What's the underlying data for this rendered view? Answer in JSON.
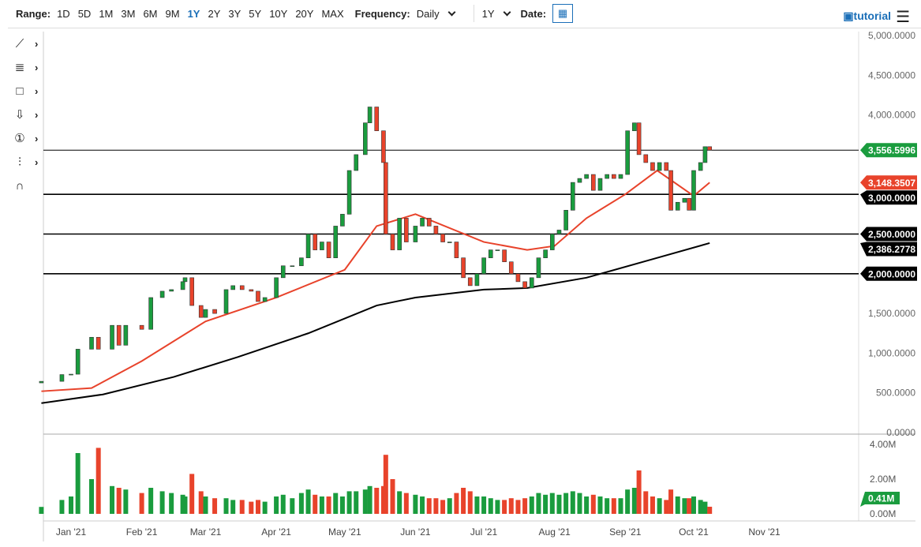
{
  "toolbar": {
    "range_label": "Range:",
    "ranges": [
      "1D",
      "5D",
      "1M",
      "3M",
      "6M",
      "9M",
      "1Y",
      "2Y",
      "3Y",
      "5Y",
      "10Y",
      "20Y",
      "MAX"
    ],
    "active_range": "1Y",
    "frequency_label": "Frequency:",
    "frequency": "Daily",
    "period": "1Y",
    "date_label": "Date:",
    "tutorial": "tutorial"
  },
  "sidebar_tools": [
    "line-tool-icon",
    "fib-tool-icon",
    "rectangle-tool-icon",
    "arrow-tool-icon",
    "number-marker-icon",
    "measure-tool-icon",
    "magnet-icon"
  ],
  "colors": {
    "up": "#1a9c3e",
    "down": "#e8432b",
    "ma50": "#e8432b",
    "ma200": "#000000"
  },
  "chart_data": {
    "type": "candlestick",
    "ylim": [
      0,
      5000
    ],
    "y_ticks": [
      "5,000.0000",
      "4,500.0000",
      "4,000.0000",
      "1,500.0000",
      "1,000.0000",
      "500.0000",
      "0.0000"
    ],
    "x_ticks": [
      [
        "2021-01-01",
        "Jan '21"
      ],
      [
        "2021-02-01",
        "Feb '21"
      ],
      [
        "2021-03-01",
        "Mar '21"
      ],
      [
        "2021-04-01",
        "Apr '21"
      ],
      [
        "2021-05-01",
        "May '21"
      ],
      [
        "2021-06-01",
        "Jun '21"
      ],
      [
        "2021-07-01",
        "Jul '21"
      ],
      [
        "2021-08-01",
        "Aug '21"
      ],
      [
        "2021-09-01",
        "Sep '21"
      ],
      [
        "2021-10-01",
        "Oct '21"
      ],
      [
        "2021-11-01",
        "Nov '21"
      ]
    ],
    "horizontal_lines": [
      {
        "value": 3556.5996,
        "label": "3,556.5996"
      },
      {
        "value": 3000,
        "label": "3,000.0000"
      },
      {
        "value": 2500,
        "label": "2,500.0000"
      },
      {
        "value": 2000,
        "label": "2,000.0000"
      }
    ],
    "price_labels": [
      {
        "value": 3556.5996,
        "label": "3,556.5996",
        "color": "#1a9c3e"
      },
      {
        "value": 3148.3507,
        "label": "3,148.3507",
        "color": "#e8432b"
      },
      {
        "value": 3000,
        "label": "3,000.0000",
        "color": "#000000"
      },
      {
        "value": 2500,
        "label": "2,500.0000",
        "color": "#000000"
      },
      {
        "value": 2386.2778,
        "label": "2,386.2778",
        "color": "#000000"
      },
      {
        "value": 2000,
        "label": "2,000.0000",
        "color": "#000000"
      }
    ],
    "closes": [
      [
        "2020-12-19",
        645
      ],
      [
        "2020-12-28",
        730
      ],
      [
        "2021-01-01",
        735
      ],
      [
        "2021-01-04",
        1050
      ],
      [
        "2021-01-10",
        1200
      ],
      [
        "2021-01-13",
        1050
      ],
      [
        "2021-01-19",
        1350
      ],
      [
        "2021-01-22",
        1100
      ],
      [
        "2021-01-25",
        1350
      ],
      [
        "2021-02-01",
        1300
      ],
      [
        "2021-02-05",
        1700
      ],
      [
        "2021-02-10",
        1780
      ],
      [
        "2021-02-14",
        1800
      ],
      [
        "2021-02-19",
        1900
      ],
      [
        "2021-02-20",
        1950
      ],
      [
        "2021-02-23",
        1600
      ],
      [
        "2021-02-27",
        1450
      ],
      [
        "2021-03-01",
        1550
      ],
      [
        "2021-03-05",
        1500
      ],
      [
        "2021-03-10",
        1800
      ],
      [
        "2021-03-13",
        1850
      ],
      [
        "2021-03-17",
        1800
      ],
      [
        "2021-03-21",
        1780
      ],
      [
        "2021-03-24",
        1650
      ],
      [
        "2021-03-27",
        1700
      ],
      [
        "2021-04-01",
        1950
      ],
      [
        "2021-04-04",
        2100
      ],
      [
        "2021-04-08",
        2100
      ],
      [
        "2021-04-12",
        2200
      ],
      [
        "2021-04-15",
        2500
      ],
      [
        "2021-04-18",
        2300
      ],
      [
        "2021-04-21",
        2400
      ],
      [
        "2021-04-24",
        2200
      ],
      [
        "2021-04-27",
        2600
      ],
      [
        "2021-04-30",
        2750
      ],
      [
        "2021-05-03",
        3300
      ],
      [
        "2021-05-06",
        3500
      ],
      [
        "2021-05-10",
        3900
      ],
      [
        "2021-05-12",
        4100
      ],
      [
        "2021-05-15",
        3800
      ],
      [
        "2021-05-18",
        3400
      ],
      [
        "2021-05-19",
        2500
      ],
      [
        "2021-05-22",
        2300
      ],
      [
        "2021-05-25",
        2700
      ],
      [
        "2021-05-28",
        2400
      ],
      [
        "2021-06-01",
        2600
      ],
      [
        "2021-06-04",
        2700
      ],
      [
        "2021-06-07",
        2600
      ],
      [
        "2021-06-10",
        2500
      ],
      [
        "2021-06-13",
        2400
      ],
      [
        "2021-06-16",
        2400
      ],
      [
        "2021-06-19",
        2200
      ],
      [
        "2021-06-22",
        1950
      ],
      [
        "2021-06-25",
        1850
      ],
      [
        "2021-06-28",
        2000
      ],
      [
        "2021-07-01",
        2200
      ],
      [
        "2021-07-04",
        2300
      ],
      [
        "2021-07-07",
        2300
      ],
      [
        "2021-07-10",
        2150
      ],
      [
        "2021-07-13",
        2000
      ],
      [
        "2021-07-16",
        1900
      ],
      [
        "2021-07-19",
        1820
      ],
      [
        "2021-07-22",
        1950
      ],
      [
        "2021-07-25",
        2200
      ],
      [
        "2021-07-28",
        2300
      ],
      [
        "2021-07-31",
        2500
      ],
      [
        "2021-08-03",
        2550
      ],
      [
        "2021-08-06",
        2800
      ],
      [
        "2021-08-09",
        3150
      ],
      [
        "2021-08-12",
        3200
      ],
      [
        "2021-08-15",
        3250
      ],
      [
        "2021-08-18",
        3050
      ],
      [
        "2021-08-21",
        3200
      ],
      [
        "2021-08-24",
        3250
      ],
      [
        "2021-08-27",
        3200
      ],
      [
        "2021-08-30",
        3250
      ],
      [
        "2021-09-02",
        3800
      ],
      [
        "2021-09-05",
        3900
      ],
      [
        "2021-09-07",
        3500
      ],
      [
        "2021-09-10",
        3400
      ],
      [
        "2021-09-13",
        3300
      ],
      [
        "2021-09-16",
        3400
      ],
      [
        "2021-09-19",
        3300
      ],
      [
        "2021-09-21",
        2800
      ],
      [
        "2021-09-24",
        2900
      ],
      [
        "2021-09-27",
        2950
      ],
      [
        "2021-09-29",
        2800
      ],
      [
        "2021-10-01",
        3300
      ],
      [
        "2021-10-04",
        3400
      ],
      [
        "2021-10-06",
        3600
      ],
      [
        "2021-10-08",
        3557
      ]
    ],
    "ma50": [
      [
        "2020-12-19",
        520
      ],
      [
        "2021-01-10",
        560
      ],
      [
        "2021-02-01",
        900
      ],
      [
        "2021-03-01",
        1400
      ],
      [
        "2021-04-01",
        1700
      ],
      [
        "2021-05-01",
        2050
      ],
      [
        "2021-05-15",
        2600
      ],
      [
        "2021-06-01",
        2750
      ],
      [
        "2021-07-01",
        2400
      ],
      [
        "2021-07-20",
        2300
      ],
      [
        "2021-08-01",
        2350
      ],
      [
        "2021-08-15",
        2700
      ],
      [
        "2021-09-01",
        3000
      ],
      [
        "2021-09-15",
        3300
      ],
      [
        "2021-10-01",
        2980
      ],
      [
        "2021-10-08",
        3148.35
      ]
    ],
    "ma200": [
      [
        "2020-12-19",
        370
      ],
      [
        "2021-01-15",
        480
      ],
      [
        "2021-02-15",
        700
      ],
      [
        "2021-03-15",
        950
      ],
      [
        "2021-04-15",
        1250
      ],
      [
        "2021-05-15",
        1600
      ],
      [
        "2021-06-01",
        1700
      ],
      [
        "2021-07-01",
        1800
      ],
      [
        "2021-07-20",
        1820
      ],
      [
        "2021-08-15",
        1950
      ],
      [
        "2021-09-15",
        2200
      ],
      [
        "2021-10-08",
        2386.28
      ]
    ],
    "volume": {
      "ylim": [
        0,
        4
      ],
      "ticks": [
        "4.00M",
        "2.00M",
        "0.00M"
      ],
      "current": "0.41M",
      "values": [
        0.4,
        0.8,
        1.0,
        3.5,
        2.0,
        3.8,
        1.6,
        1.5,
        1.4,
        1.2,
        1.5,
        1.3,
        1.2,
        1.1,
        1.0,
        2.3,
        1.3,
        1.0,
        0.9,
        0.9,
        0.8,
        0.8,
        0.7,
        0.8,
        0.7,
        1.0,
        1.1,
        0.9,
        1.2,
        1.4,
        1.1,
        1.0,
        1.0,
        1.2,
        1.0,
        1.3,
        1.3,
        1.4,
        1.6,
        1.5,
        1.6,
        3.4,
        2.0,
        1.3,
        1.2,
        1.1,
        1.0,
        0.9,
        0.9,
        0.8,
        0.9,
        1.2,
        1.5,
        1.3,
        1.0,
        1.0,
        0.9,
        0.8,
        0.8,
        0.9,
        0.8,
        0.9,
        1.0,
        1.2,
        1.1,
        1.2,
        1.1,
        1.2,
        1.3,
        1.2,
        1.0,
        1.1,
        1.0,
        0.9,
        0.9,
        0.9,
        1.4,
        1.5,
        2.5,
        1.3,
        1.0,
        0.9,
        0.8,
        1.4,
        1.0,
        0.9,
        0.9,
        1.0,
        0.8,
        0.7,
        0.41
      ]
    }
  }
}
